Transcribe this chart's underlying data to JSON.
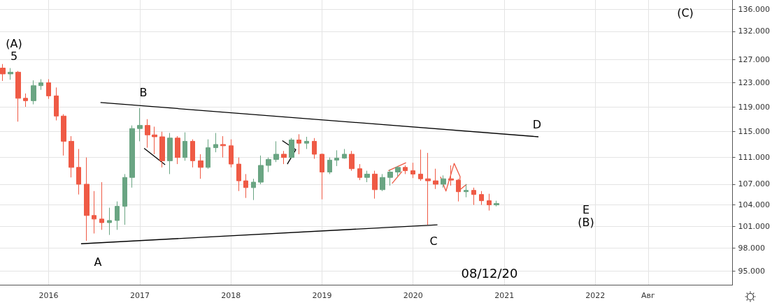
{
  "chart_data": {
    "type": "candlestick",
    "log": "y",
    "grid": true,
    "x": [
      "2015-07",
      "2015-08",
      "2015-09",
      "2015-10",
      "2015-11",
      "2015-12",
      "2016-01",
      "2016-02",
      "2016-03",
      "2016-04",
      "2016-05",
      "2016-06",
      "2016-07",
      "2016-08",
      "2016-09",
      "2016-10",
      "2016-11",
      "2016-12",
      "2017-01",
      "2017-02",
      "2017-03",
      "2017-04",
      "2017-05",
      "2017-06",
      "2017-07",
      "2017-08",
      "2017-09",
      "2017-10",
      "2017-11",
      "2017-12",
      "2018-01",
      "2018-02",
      "2018-03",
      "2018-04",
      "2018-05",
      "2018-06",
      "2018-07",
      "2018-08",
      "2018-09",
      "2018-10",
      "2018-11",
      "2018-12",
      "2019-01",
      "2019-02",
      "2019-03",
      "2019-04",
      "2019-05",
      "2019-06",
      "2019-07",
      "2019-08",
      "2019-09",
      "2019-10",
      "2019-11",
      "2019-12",
      "2020-01",
      "2020-02",
      "2020-03",
      "2020-04",
      "2020-05",
      "2020-06",
      "2020-07",
      "2020-08",
      "2020-09",
      "2020-10",
      "2020-11",
      "2020-12"
    ],
    "ohlc": [
      [
        125.5,
        126.2,
        123.3,
        124.5
      ],
      [
        124.5,
        125.5,
        123.5,
        124.8
      ],
      [
        124.8,
        125.0,
        116.6,
        120.4
      ],
      [
        120.4,
        121.2,
        119.0,
        120.0
      ],
      [
        120.0,
        123.4,
        119.4,
        122.5
      ],
      [
        122.5,
        123.6,
        121.8,
        123.0
      ],
      [
        123.0,
        123.6,
        120.3,
        120.8
      ],
      [
        120.8,
        122.2,
        116.8,
        117.5
      ],
      [
        117.5,
        117.8,
        111.3,
        113.5
      ],
      [
        113.5,
        114.3,
        108.0,
        109.5
      ],
      [
        109.5,
        112.3,
        105.5,
        107.0
      ],
      [
        107.0,
        111.0,
        99.0,
        102.5
      ],
      [
        102.5,
        106.0,
        100.0,
        102.0
      ],
      [
        102.0,
        107.3,
        100.5,
        101.5
      ],
      [
        101.5,
        103.6,
        99.8,
        101.8
      ],
      [
        101.8,
        104.5,
        100.5,
        103.8
      ],
      [
        103.8,
        108.5,
        101.2,
        108.0
      ],
      [
        108.0,
        116.0,
        106.5,
        115.5
      ],
      [
        115.5,
        118.8,
        113.5,
        116.0
      ],
      [
        116.0,
        117.0,
        112.5,
        114.5
      ],
      [
        114.5,
        115.8,
        111.5,
        114.2
      ],
      [
        114.2,
        115.0,
        109.5,
        110.5
      ],
      [
        110.5,
        114.8,
        108.5,
        114.0
      ],
      [
        114.0,
        114.3,
        110.0,
        111.0
      ],
      [
        111.0,
        114.9,
        110.5,
        113.5
      ],
      [
        113.5,
        113.8,
        109.5,
        110.5
      ],
      [
        110.5,
        111.5,
        107.8,
        109.5
      ],
      [
        109.5,
        113.8,
        109.3,
        112.5
      ],
      [
        112.5,
        114.8,
        111.8,
        113.0
      ],
      [
        113.0,
        114.3,
        111.0,
        112.8
      ],
      [
        112.8,
        113.8,
        109.5,
        110.0
      ],
      [
        110.0,
        111.0,
        106.0,
        107.5
      ],
      [
        107.5,
        108.5,
        105.0,
        106.5
      ],
      [
        106.5,
        107.8,
        104.7,
        107.3
      ],
      [
        107.3,
        111.3,
        107.0,
        109.8
      ],
      [
        109.8,
        111.0,
        108.8,
        110.7
      ],
      [
        110.7,
        113.5,
        110.3,
        111.5
      ],
      [
        111.5,
        112.0,
        110.0,
        111.0
      ],
      [
        111.0,
        114.0,
        110.8,
        113.7
      ],
      [
        113.7,
        114.6,
        111.5,
        113.2
      ],
      [
        113.2,
        114.2,
        112.3,
        113.5
      ],
      [
        113.5,
        114.0,
        110.8,
        111.5
      ],
      [
        111.5,
        111.6,
        104.8,
        108.8
      ],
      [
        108.8,
        111.0,
        108.5,
        110.6
      ],
      [
        110.6,
        112.1,
        109.7,
        110.9
      ],
      [
        110.9,
        112.3,
        110.8,
        111.5
      ],
      [
        111.5,
        112.0,
        109.0,
        109.3
      ],
      [
        109.3,
        110.0,
        107.6,
        108.0
      ],
      [
        108.0,
        109.0,
        107.3,
        108.5
      ],
      [
        108.5,
        109.0,
        104.9,
        106.2
      ],
      [
        106.2,
        108.5,
        106.0,
        108.0
      ],
      [
        108.0,
        109.2,
        106.8,
        108.8
      ],
      [
        108.8,
        109.7,
        108.2,
        109.5
      ],
      [
        109.5,
        109.8,
        108.5,
        109.0
      ],
      [
        109.0,
        110.2,
        107.9,
        108.5
      ],
      [
        108.5,
        112.2,
        107.5,
        107.8
      ],
      [
        107.8,
        111.7,
        101.2,
        107.5
      ],
      [
        107.5,
        109.3,
        106.3,
        107.0
      ],
      [
        107.0,
        108.3,
        106.5,
        107.8
      ],
      [
        107.8,
        109.8,
        106.8,
        107.6
      ],
      [
        107.6,
        107.8,
        104.5,
        105.9
      ],
      [
        105.9,
        107.0,
        105.1,
        106.1
      ],
      [
        106.1,
        106.5,
        104.0,
        105.5
      ],
      [
        105.5,
        106.0,
        104.0,
        104.6
      ],
      [
        104.6,
        105.6,
        103.2,
        104.0
      ],
      [
        104.0,
        104.6,
        103.8,
        104.2
      ]
    ],
    "colors": [
      "#ef5a45",
      "#6aa583",
      "#ef5a45",
      "#ef5a45",
      "#6aa583",
      "#6aa583",
      "#ef5a45",
      "#ef5a45",
      "#ef5a45",
      "#ef5a45",
      "#ef5a45",
      "#ef5a45",
      "#ef5a45",
      "#ef5a45",
      "#6aa583",
      "#6aa583",
      "#6aa583",
      "#6aa583",
      "#6aa583",
      "#ef5a45",
      "#ef5a45",
      "#ef5a45",
      "#6aa583",
      "#ef5a45",
      "#6aa583",
      "#ef5a45",
      "#ef5a45",
      "#6aa583",
      "#6aa583",
      "#ef5a45",
      "#ef5a45",
      "#ef5a45",
      "#ef5a45",
      "#6aa583",
      "#6aa583",
      "#6aa583",
      "#6aa583",
      "#ef5a45",
      "#6aa583",
      "#ef5a45",
      "#6aa583",
      "#ef5a45",
      "#ef5a45",
      "#6aa583",
      "#6aa583",
      "#6aa583",
      "#ef5a45",
      "#ef5a45",
      "#6aa583",
      "#ef5a45",
      "#6aa583",
      "#6aa583",
      "#6aa583",
      "#ef5a45",
      "#ef5a45",
      "#ef5a45",
      "#ef5a45",
      "#ef5a45",
      "#6aa583",
      "#ef5a45",
      "#ef5a45",
      "#6aa583",
      "#ef5a45",
      "#ef5a45",
      "#ef5a45",
      "#6aa583"
    ],
    "series": [
      {
        "type": "line",
        "color": "#000000",
        "x": [
          "2016-07-27",
          "2021-05-18"
        ],
        "values": [
          119.7,
          114.2
        ]
      },
      {
        "type": "line",
        "color": "#000000",
        "x": [
          "2016-05-10",
          "2020-04-08"
        ],
        "values": [
          98.6,
          101.2
        ]
      },
      {
        "type": "line",
        "color": "#000000",
        "x": [
          "2017-01-18",
          "2017-04-12"
        ],
        "values": [
          112.4,
          109.9
        ]
      },
      {
        "type": "line",
        "color": "#000000",
        "x": [
          "2018-07-26",
          "2018-09-18",
          "2018-08-15"
        ],
        "values": [
          113.6,
          112.2,
          110.0
        ]
      },
      {
        "type": "line",
        "color": "#ef5a45",
        "x": [
          "2019-09-24",
          "2019-12-04"
        ],
        "values": [
          109.0,
          110.2
        ]
      },
      {
        "type": "line",
        "color": "#ef5a45",
        "x": [
          "2019-10-09",
          "2019-11-18"
        ],
        "values": [
          107.1,
          108.9
        ]
      },
      {
        "type": "line",
        "color": "#ef5a45",
        "x": [
          "2020-04-20",
          "2020-05-12",
          "2020-06-14",
          "2020-07-08",
          "2020-07-01",
          "2020-08-03"
        ],
        "values": [
          108.1,
          106.0,
          110.1,
          108.1,
          106.0,
          107.0
        ]
      }
    ],
    "xlim": [
      "2015-06-20",
      "2023-07-05"
    ],
    "xticks": [
      "2016",
      "2017",
      "2018",
      "2019",
      "2020",
      "2021",
      "2022",
      {
        "value": "2022-08",
        "label": "Авг"
      }
    ],
    "ylim": [
      93.2,
      137.8
    ],
    "yticks": [
      {
        "value": 95,
        "label": "95.000"
      },
      {
        "value": 98,
        "label": "98.000"
      },
      {
        "value": 101,
        "label": "101.000"
      },
      {
        "value": 104,
        "label": "104.000"
      },
      {
        "value": 107,
        "label": "107.000"
      },
      {
        "value": 111,
        "label": "111.000"
      },
      {
        "value": 115,
        "label": "115.000"
      },
      {
        "value": 119,
        "label": "119.000"
      },
      {
        "value": 123,
        "label": "123.000"
      },
      {
        "value": 127,
        "label": "127.000"
      },
      {
        "value": 132,
        "label": "132.000"
      },
      {
        "value": 136,
        "label": "136.000"
      }
    ],
    "annotations": [
      "(A)",
      "5",
      "B",
      "A",
      "C",
      "D",
      "E",
      "(B)",
      "(C)",
      "08/12/20"
    ]
  }
}
